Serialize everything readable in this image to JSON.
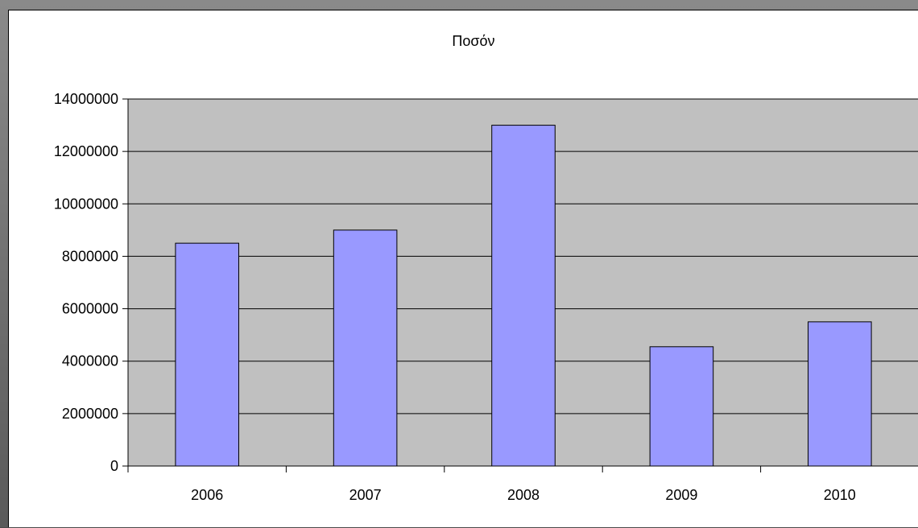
{
  "chart_data": {
    "type": "bar",
    "title": "Ποσόν",
    "categories": [
      "2006",
      "2007",
      "2008",
      "2009",
      "2010"
    ],
    "values": [
      8500000,
      9000000,
      13000000,
      4550000,
      5500000
    ],
    "ylim": [
      0,
      14000000
    ],
    "yticks": [
      "0",
      "2000000",
      "4000000",
      "6000000",
      "8000000",
      "10000000",
      "12000000",
      "14000000"
    ],
    "ytick_values": [
      0,
      2000000,
      4000000,
      6000000,
      8000000,
      10000000,
      12000000,
      14000000
    ],
    "grid": true,
    "legend": "none",
    "colors": {
      "bar_fill": "#9999ff",
      "bar_stroke": "#000000",
      "plot_background": "#c0c0c0",
      "gridline": "#000000"
    }
  }
}
